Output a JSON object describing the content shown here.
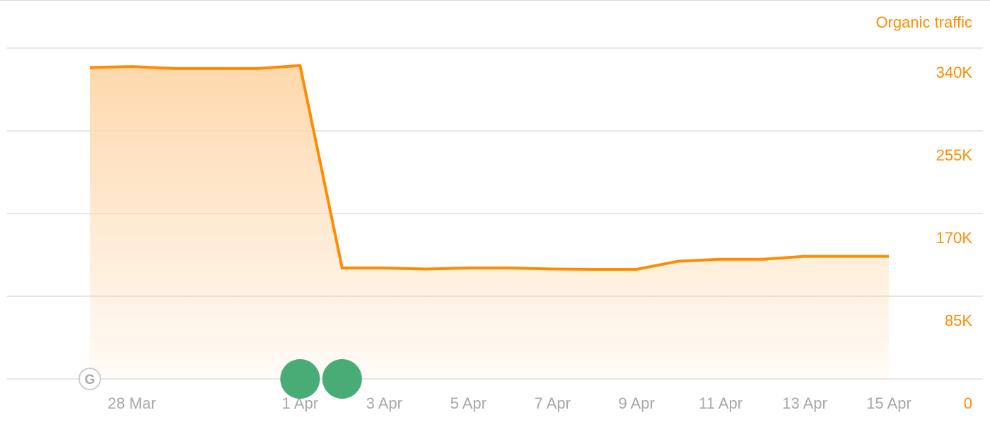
{
  "chart_data": {
    "type": "area",
    "series": [
      {
        "name": "Organic traffic",
        "color": "#ff8c00",
        "x": [
          "27 Mar",
          "28 Mar",
          "29 Mar",
          "30 Mar",
          "31 Mar",
          "1 Apr",
          "2 Apr",
          "3 Apr",
          "4 Apr",
          "5 Apr",
          "6 Apr",
          "7 Apr",
          "8 Apr",
          "9 Apr",
          "10 Apr",
          "11 Apr",
          "12 Apr",
          "13 Apr",
          "14 Apr",
          "15 Apr"
        ],
        "values": [
          320000,
          321000,
          319000,
          319000,
          319000,
          322000,
          114000,
          114000,
          113000,
          114000,
          114000,
          113000,
          112600,
          112600,
          121000,
          123000,
          123000,
          126000,
          126000,
          126000
        ]
      }
    ],
    "y_axis": {
      "title": "Organic traffic",
      "position": "right",
      "ylim": [
        0,
        340000
      ],
      "ticks": [
        0,
        85000,
        170000,
        255000,
        340000
      ],
      "tick_labels": [
        "0",
        "85K",
        "170K",
        "255K",
        "340K"
      ]
    },
    "x_axis": {
      "tick_labels": [
        "28 Mar",
        "1 Apr",
        "3 Apr",
        "5 Apr",
        "7 Apr",
        "9 Apr",
        "11 Apr",
        "13 Apr",
        "15 Apr"
      ]
    },
    "grid": true,
    "annotations": [
      {
        "type": "google-update-icon",
        "label": "G",
        "date": "27 Mar",
        "color": "#cccccc"
      },
      {
        "type": "event-marker",
        "date": "1 Apr",
        "color": "#3aa56b"
      },
      {
        "type": "event-marker",
        "date": "2 Apr",
        "color": "#3aa56b"
      }
    ]
  }
}
